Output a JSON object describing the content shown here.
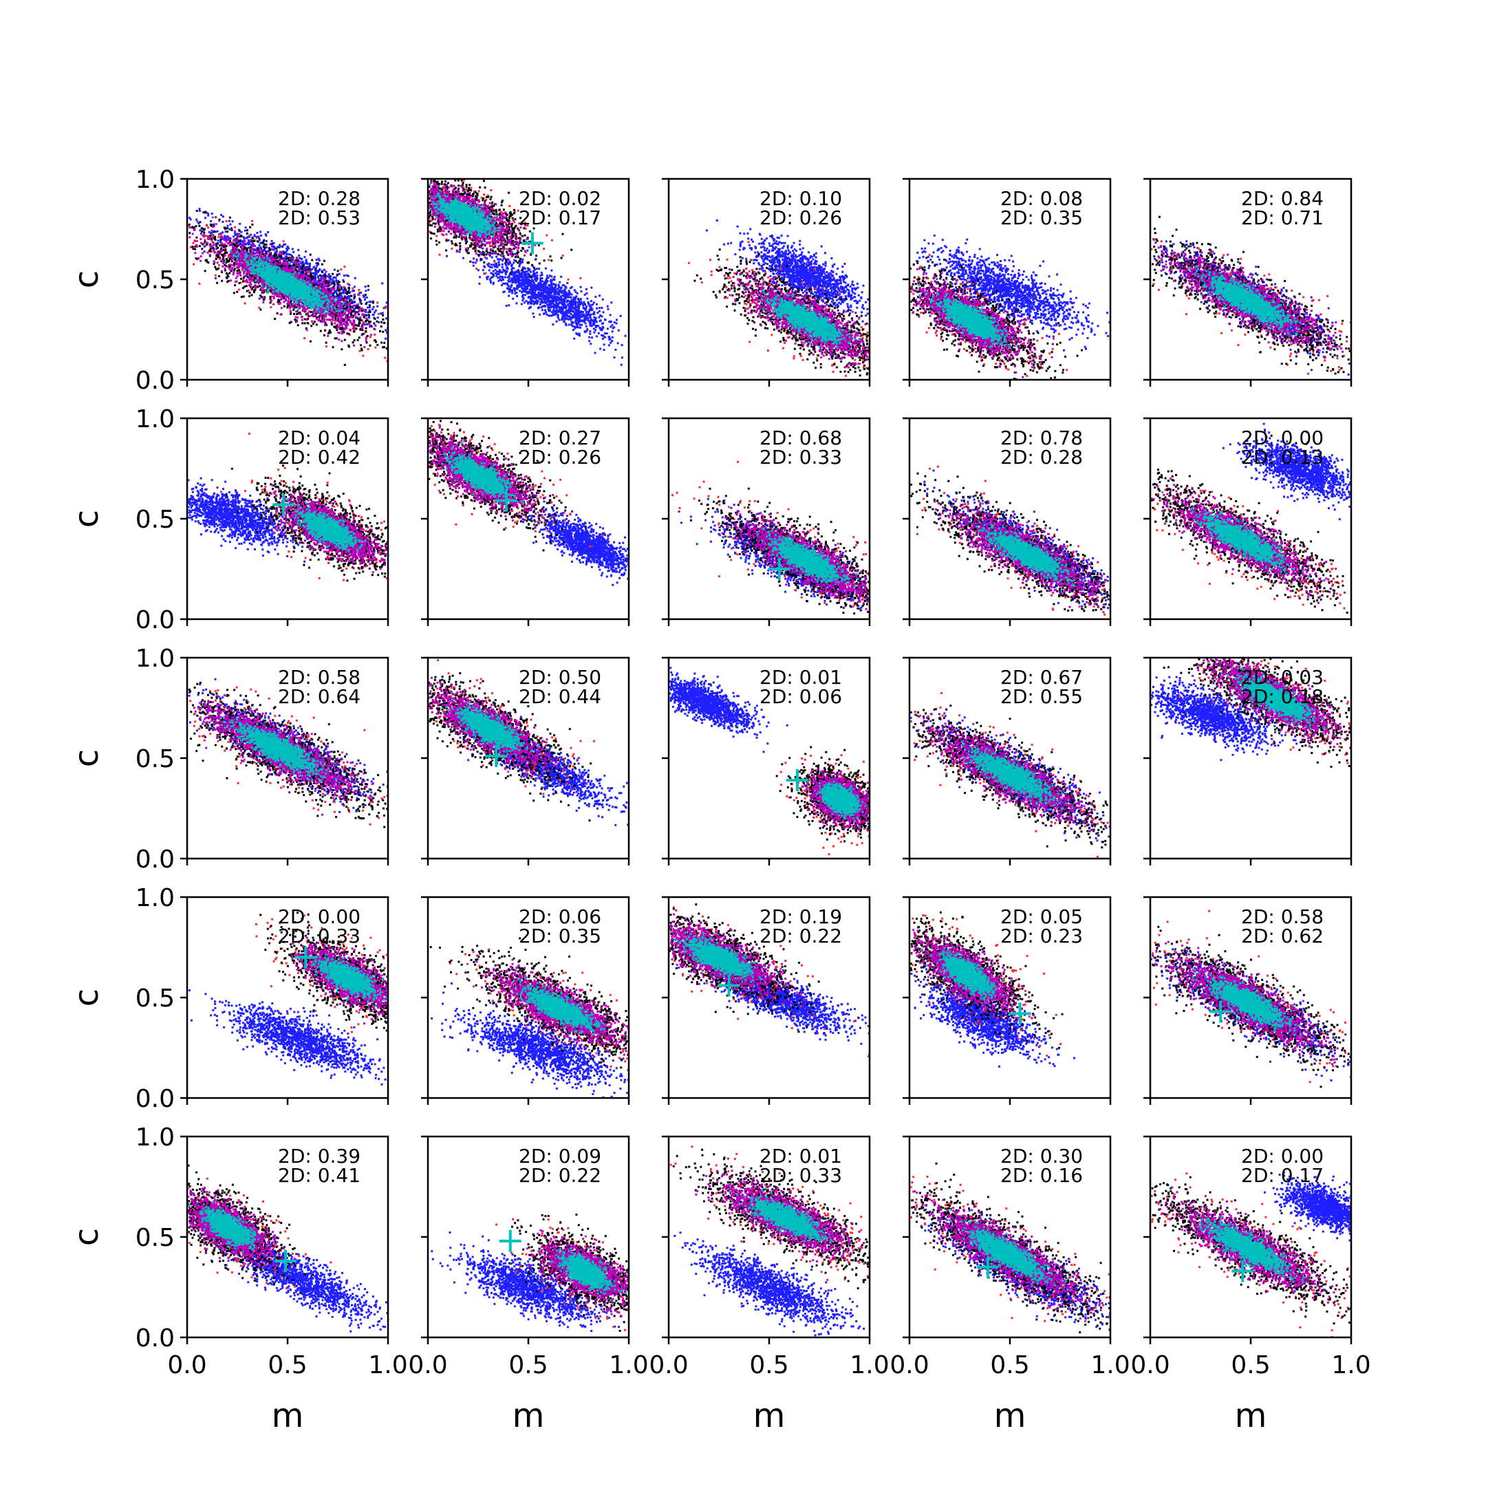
{
  "chart_data": {
    "type": "scatter",
    "layout": "5x5 grid of scatter subplots",
    "xlabel": "m",
    "ylabel": "c",
    "xlim": [
      0.0,
      1.0
    ],
    "ylim": [
      0.0,
      1.0
    ],
    "xticks": [
      "0.0",
      "0.5",
      "1.0"
    ],
    "yticks": [
      "0.0",
      "0.5",
      "1.0"
    ],
    "colors": {
      "blue": "#1f1fff",
      "red": "#ff2a2a",
      "black": "#000000",
      "magenta": "#c000c0",
      "cyan": "#00bfbf",
      "marker": "#00bfbf"
    },
    "stat_prefix": "2D:",
    "panels": [
      {
        "row": 0,
        "col": 0,
        "stat1": "0.28",
        "stat2": "0.53",
        "blue": {
          "cx": 0.55,
          "cy": 0.52,
          "slope": -0.55,
          "len": 0.55,
          "wid": 0.09
        },
        "main": {
          "cx": 0.5,
          "cy": 0.48,
          "slope": -0.55,
          "len": 0.55,
          "wid": 0.1
        },
        "marker": null
      },
      {
        "row": 0,
        "col": 1,
        "stat1": "0.02",
        "stat2": "0.17",
        "blue": {
          "cx": 0.6,
          "cy": 0.42,
          "slope": -0.55,
          "len": 0.42,
          "wid": 0.08
        },
        "main": {
          "cx": 0.18,
          "cy": 0.82,
          "slope": -0.55,
          "len": 0.35,
          "wid": 0.1
        },
        "marker": [
          0.52,
          0.68
        ]
      },
      {
        "row": 0,
        "col": 2,
        "stat1": "0.10",
        "stat2": "0.26",
        "blue": {
          "cx": 0.68,
          "cy": 0.52,
          "slope": -0.5,
          "len": 0.35,
          "wid": 0.09
        },
        "main": {
          "cx": 0.68,
          "cy": 0.3,
          "slope": -0.55,
          "len": 0.45,
          "wid": 0.1
        },
        "marker": null
      },
      {
        "row": 0,
        "col": 3,
        "stat1": "0.08",
        "stat2": "0.35",
        "blue": {
          "cx": 0.48,
          "cy": 0.45,
          "slope": -0.45,
          "len": 0.45,
          "wid": 0.1
        },
        "main": {
          "cx": 0.3,
          "cy": 0.3,
          "slope": -0.6,
          "len": 0.4,
          "wid": 0.1
        },
        "marker": null
      },
      {
        "row": 0,
        "col": 4,
        "stat1": "0.84",
        "stat2": "0.71",
        "blue": {
          "cx": 0.5,
          "cy": 0.4,
          "slope": -0.55,
          "len": 0.5,
          "wid": 0.09
        },
        "main": {
          "cx": 0.48,
          "cy": 0.4,
          "slope": -0.55,
          "len": 0.55,
          "wid": 0.1
        },
        "marker": null
      },
      {
        "row": 1,
        "col": 0,
        "stat1": "0.04",
        "stat2": "0.42",
        "blue": {
          "cx": 0.22,
          "cy": 0.52,
          "slope": -0.35,
          "len": 0.35,
          "wid": 0.09
        },
        "main": {
          "cx": 0.7,
          "cy": 0.45,
          "slope": -0.55,
          "len": 0.35,
          "wid": 0.1
        },
        "marker": [
          0.48,
          0.57
        ]
      },
      {
        "row": 1,
        "col": 1,
        "stat1": "0.27",
        "stat2": "0.26",
        "blue": {
          "cx": 0.78,
          "cy": 0.38,
          "slope": -0.55,
          "len": 0.28,
          "wid": 0.07
        },
        "main": {
          "cx": 0.25,
          "cy": 0.72,
          "slope": -0.6,
          "len": 0.38,
          "wid": 0.1
        },
        "marker": [
          0.39,
          0.59
        ]
      },
      {
        "row": 1,
        "col": 2,
        "stat1": "0.68",
        "stat2": "0.33",
        "blue": {
          "cx": 0.6,
          "cy": 0.3,
          "slope": -0.5,
          "len": 0.45,
          "wid": 0.09
        },
        "main": {
          "cx": 0.68,
          "cy": 0.3,
          "slope": -0.55,
          "len": 0.45,
          "wid": 0.1
        },
        "marker": [
          0.55,
          0.25
        ]
      },
      {
        "row": 1,
        "col": 3,
        "stat1": "0.78",
        "stat2": "0.28",
        "blue": {
          "cx": 0.6,
          "cy": 0.35,
          "slope": -0.55,
          "len": 0.48,
          "wid": 0.09
        },
        "main": {
          "cx": 0.58,
          "cy": 0.33,
          "slope": -0.55,
          "len": 0.5,
          "wid": 0.1
        },
        "marker": null
      },
      {
        "row": 1,
        "col": 4,
        "stat1": "0.00",
        "stat2": "0.13",
        "blue": {
          "cx": 0.75,
          "cy": 0.75,
          "slope": -0.4,
          "len": 0.3,
          "wid": 0.09
        },
        "main": {
          "cx": 0.45,
          "cy": 0.4,
          "slope": -0.55,
          "len": 0.52,
          "wid": 0.1
        },
        "marker": null
      },
      {
        "row": 2,
        "col": 0,
        "stat1": "0.58",
        "stat2": "0.64",
        "blue": {
          "cx": 0.48,
          "cy": 0.55,
          "slope": -0.55,
          "len": 0.5,
          "wid": 0.09
        },
        "main": {
          "cx": 0.45,
          "cy": 0.55,
          "slope": -0.55,
          "len": 0.52,
          "wid": 0.1
        },
        "marker": null
      },
      {
        "row": 2,
        "col": 1,
        "stat1": "0.50",
        "stat2": "0.44",
        "blue": {
          "cx": 0.55,
          "cy": 0.48,
          "slope": -0.55,
          "len": 0.45,
          "wid": 0.08
        },
        "main": {
          "cx": 0.3,
          "cy": 0.65,
          "slope": -0.6,
          "len": 0.4,
          "wid": 0.1
        },
        "marker": [
          0.34,
          0.51
        ]
      },
      {
        "row": 2,
        "col": 2,
        "stat1": "0.01",
        "stat2": "0.06",
        "blue": {
          "cx": 0.18,
          "cy": 0.78,
          "slope": -0.45,
          "len": 0.28,
          "wid": 0.07
        },
        "main": {
          "cx": 0.85,
          "cy": 0.3,
          "slope": -0.6,
          "len": 0.22,
          "wid": 0.1
        },
        "marker": [
          0.64,
          0.39
        ]
      },
      {
        "row": 2,
        "col": 3,
        "stat1": "0.67",
        "stat2": "0.55",
        "blue": {
          "cx": 0.52,
          "cy": 0.42,
          "slope": -0.55,
          "len": 0.48,
          "wid": 0.09
        },
        "main": {
          "cx": 0.5,
          "cy": 0.42,
          "slope": -0.55,
          "len": 0.52,
          "wid": 0.1
        },
        "marker": null
      },
      {
        "row": 2,
        "col": 4,
        "stat1": "0.03",
        "stat2": "0.18",
        "blue": {
          "cx": 0.3,
          "cy": 0.72,
          "slope": -0.35,
          "len": 0.35,
          "wid": 0.09
        },
        "main": {
          "cx": 0.62,
          "cy": 0.8,
          "slope": -0.55,
          "len": 0.45,
          "wid": 0.1
        },
        "marker": [
          0.6,
          0.8
        ]
      },
      {
        "row": 3,
        "col": 0,
        "stat1": "0.00",
        "stat2": "0.33",
        "blue": {
          "cx": 0.55,
          "cy": 0.3,
          "slope": -0.4,
          "len": 0.45,
          "wid": 0.09
        },
        "main": {
          "cx": 0.8,
          "cy": 0.6,
          "slope": -0.55,
          "len": 0.35,
          "wid": 0.1
        },
        "marker": [
          0.59,
          0.7
        ]
      },
      {
        "row": 3,
        "col": 1,
        "stat1": "0.06",
        "stat2": "0.35",
        "blue": {
          "cx": 0.55,
          "cy": 0.25,
          "slope": -0.4,
          "len": 0.45,
          "wid": 0.09
        },
        "main": {
          "cx": 0.65,
          "cy": 0.45,
          "slope": -0.5,
          "len": 0.45,
          "wid": 0.1
        },
        "marker": null
      },
      {
        "row": 3,
        "col": 2,
        "stat1": "0.19",
        "stat2": "0.22",
        "blue": {
          "cx": 0.55,
          "cy": 0.5,
          "slope": -0.4,
          "len": 0.4,
          "wid": 0.08
        },
        "main": {
          "cx": 0.25,
          "cy": 0.7,
          "slope": -0.5,
          "len": 0.4,
          "wid": 0.1
        },
        "marker": [
          0.3,
          0.56
        ]
      },
      {
        "row": 3,
        "col": 3,
        "stat1": "0.05",
        "stat2": "0.23",
        "blue": {
          "cx": 0.35,
          "cy": 0.4,
          "slope": -0.5,
          "len": 0.35,
          "wid": 0.09
        },
        "main": {
          "cx": 0.28,
          "cy": 0.62,
          "slope": -0.7,
          "len": 0.35,
          "wid": 0.1
        },
        "marker": [
          0.55,
          0.42
        ]
      },
      {
        "row": 3,
        "col": 4,
        "stat1": "0.58",
        "stat2": "0.62",
        "blue": {
          "cx": 0.5,
          "cy": 0.45,
          "slope": -0.55,
          "len": 0.5,
          "wid": 0.09
        },
        "main": {
          "cx": 0.48,
          "cy": 0.48,
          "slope": -0.55,
          "len": 0.52,
          "wid": 0.1
        },
        "marker": [
          0.35,
          0.43
        ]
      },
      {
        "row": 4,
        "col": 0,
        "stat1": "0.39",
        "stat2": "0.41",
        "blue": {
          "cx": 0.55,
          "cy": 0.3,
          "slope": -0.5,
          "len": 0.45,
          "wid": 0.08
        },
        "main": {
          "cx": 0.2,
          "cy": 0.55,
          "slope": -0.6,
          "len": 0.3,
          "wid": 0.1
        },
        "marker": [
          0.49,
          0.38
        ]
      },
      {
        "row": 4,
        "col": 1,
        "stat1": "0.09",
        "stat2": "0.22",
        "blue": {
          "cx": 0.5,
          "cy": 0.25,
          "slope": -0.4,
          "len": 0.4,
          "wid": 0.09
        },
        "main": {
          "cx": 0.78,
          "cy": 0.33,
          "slope": -0.55,
          "len": 0.3,
          "wid": 0.1
        },
        "marker": [
          0.41,
          0.48
        ]
      },
      {
        "row": 4,
        "col": 2,
        "stat1": "0.01",
        "stat2": "0.33",
        "blue": {
          "cx": 0.5,
          "cy": 0.25,
          "slope": -0.45,
          "len": 0.45,
          "wid": 0.09
        },
        "main": {
          "cx": 0.58,
          "cy": 0.6,
          "slope": -0.5,
          "len": 0.45,
          "wid": 0.1
        },
        "marker": null
      },
      {
        "row": 4,
        "col": 3,
        "stat1": "0.30",
        "stat2": "0.16",
        "blue": {
          "cx": 0.55,
          "cy": 0.35,
          "slope": -0.55,
          "len": 0.5,
          "wid": 0.09
        },
        "main": {
          "cx": 0.48,
          "cy": 0.42,
          "slope": -0.6,
          "len": 0.52,
          "wid": 0.1
        },
        "marker": [
          0.39,
          0.35
        ]
      },
      {
        "row": 4,
        "col": 4,
        "stat1": "0.00",
        "stat2": "0.17",
        "blue": {
          "cx": 0.88,
          "cy": 0.65,
          "slope": -0.4,
          "len": 0.25,
          "wid": 0.08
        },
        "main": {
          "cx": 0.48,
          "cy": 0.45,
          "slope": -0.55,
          "len": 0.52,
          "wid": 0.1
        },
        "marker": [
          0.46,
          0.33
        ]
      }
    ]
  }
}
